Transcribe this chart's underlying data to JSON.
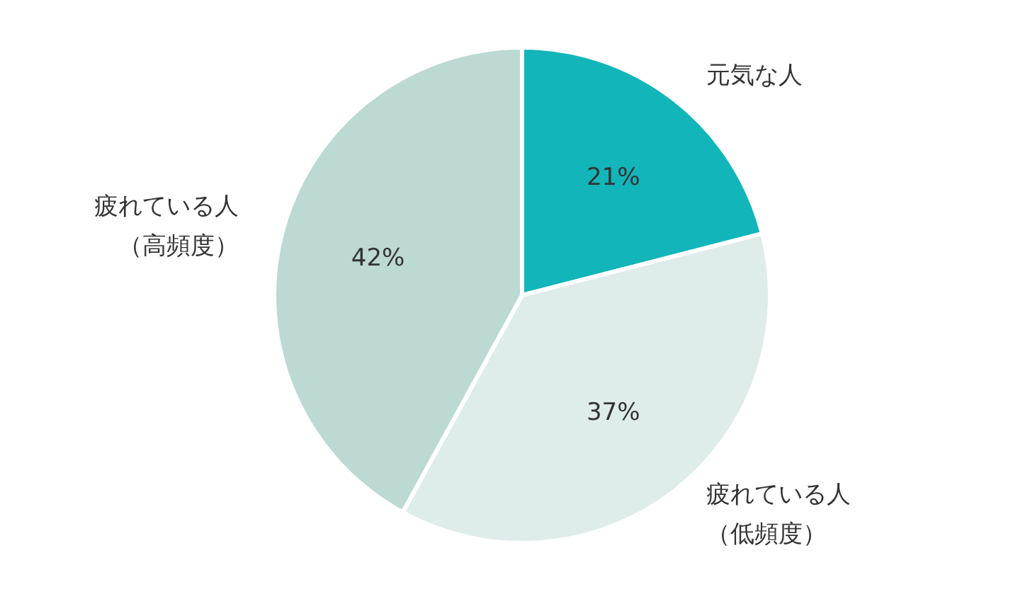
{
  "chart_data": {
    "type": "pie",
    "categories": [
      "元気な人",
      "疲れている人（低頻度）",
      "疲れている人（高頻度）"
    ],
    "values": [
      21,
      37,
      42
    ],
    "value_labels": [
      "21%",
      "37%",
      "42%"
    ],
    "colors": [
      "#12b5b9",
      "#deecea",
      "#bcd9d3"
    ]
  }
}
